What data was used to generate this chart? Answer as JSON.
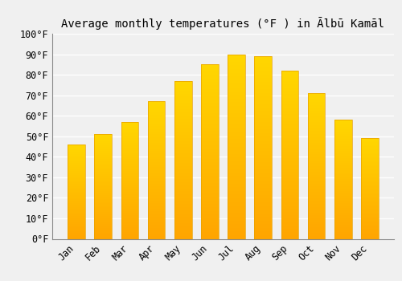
{
  "title": "Average monthly temperatures (°F ) in Ālbū Kamāl",
  "months": [
    "Jan",
    "Feb",
    "Mar",
    "Apr",
    "May",
    "Jun",
    "Jul",
    "Aug",
    "Sep",
    "Oct",
    "Nov",
    "Dec"
  ],
  "values": [
    46,
    51,
    57,
    67,
    77,
    85,
    90,
    89,
    82,
    71,
    58,
    49
  ],
  "bar_color_top": "#FFD700",
  "bar_color_bottom": "#FFA500",
  "background_color": "#F0F0F0",
  "grid_color": "#FFFFFF",
  "ylim": [
    0,
    100
  ],
  "yticks": [
    0,
    10,
    20,
    30,
    40,
    50,
    60,
    70,
    80,
    90,
    100
  ],
  "title_fontsize": 10,
  "tick_fontsize": 8.5,
  "font_family": "monospace",
  "bar_width": 0.65
}
